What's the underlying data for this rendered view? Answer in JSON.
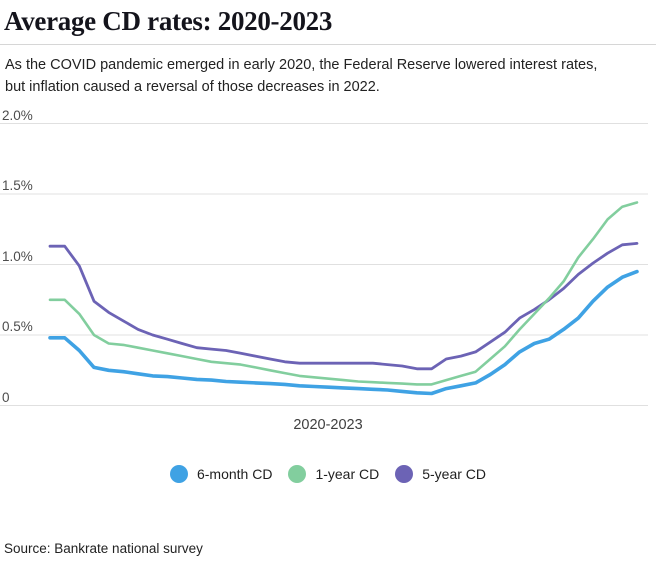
{
  "header": {
    "title": "Average CD rates: 2020-2023",
    "subtitle": "As the COVID pandemic emerged in early 2020, the Federal Reserve lowered interest rates, but inflation caused a reversal of those decreases in 2022."
  },
  "source": "Source: Bankrate national survey",
  "colors": {
    "six_month_cd": "#3fa2e4",
    "one_year_cd": "#82ce9e",
    "five_year_cd": "#6c63b5",
    "gridline": "#e0e0e0",
    "title_text": "#14141c",
    "tick_text": "#4d4d4d"
  },
  "chart_data": {
    "type": "line",
    "title": "Average CD rates: 2020-2023",
    "xlabel": "2020-2023",
    "ylabel": "",
    "ylim": [
      0,
      2.0
    ],
    "grid": "horizontal",
    "legend_position": "bottom",
    "y_axis": {
      "ticks": [
        {
          "label": "2.0%",
          "value": 2.0
        },
        {
          "label": "1.5%",
          "value": 1.5
        },
        {
          "label": "1.0%",
          "value": 1.0
        },
        {
          "label": "0.5%",
          "value": 0.5
        },
        {
          "label": "0",
          "value": 0.0
        }
      ]
    },
    "x_axis": {
      "label": "2020-2023",
      "range": "2020 through 2023, evenly spaced samples"
    },
    "series": [
      {
        "name": "6-month CD",
        "color": "#3fa2e4",
        "values": [
          0.48,
          0.48,
          0.39,
          0.27,
          0.25,
          0.24,
          0.225,
          0.21,
          0.205,
          0.195,
          0.185,
          0.18,
          0.17,
          0.165,
          0.16,
          0.155,
          0.15,
          0.14,
          0.135,
          0.13,
          0.125,
          0.12,
          0.115,
          0.11,
          0.1,
          0.09,
          0.085,
          0.12,
          0.14,
          0.16,
          0.22,
          0.29,
          0.38,
          0.44,
          0.47,
          0.54,
          0.62,
          0.74,
          0.84,
          0.91,
          0.95
        ]
      },
      {
        "name": "1-year CD",
        "color": "#82ce9e",
        "values": [
          0.75,
          0.75,
          0.65,
          0.5,
          0.44,
          0.43,
          0.41,
          0.39,
          0.37,
          0.35,
          0.33,
          0.31,
          0.3,
          0.29,
          0.27,
          0.25,
          0.23,
          0.21,
          0.2,
          0.19,
          0.18,
          0.17,
          0.165,
          0.16,
          0.155,
          0.15,
          0.15,
          0.18,
          0.21,
          0.24,
          0.33,
          0.42,
          0.54,
          0.65,
          0.76,
          0.88,
          1.05,
          1.18,
          1.32,
          1.41,
          1.44
        ]
      },
      {
        "name": "5-year CD",
        "color": "#6c63b5",
        "values": [
          1.13,
          1.13,
          0.99,
          0.74,
          0.66,
          0.6,
          0.54,
          0.5,
          0.47,
          0.44,
          0.41,
          0.4,
          0.39,
          0.37,
          0.35,
          0.33,
          0.31,
          0.3,
          0.3,
          0.3,
          0.3,
          0.3,
          0.3,
          0.29,
          0.28,
          0.26,
          0.26,
          0.33,
          0.35,
          0.38,
          0.45,
          0.52,
          0.62,
          0.68,
          0.75,
          0.83,
          0.93,
          1.01,
          1.08,
          1.14,
          1.15
        ]
      }
    ]
  }
}
